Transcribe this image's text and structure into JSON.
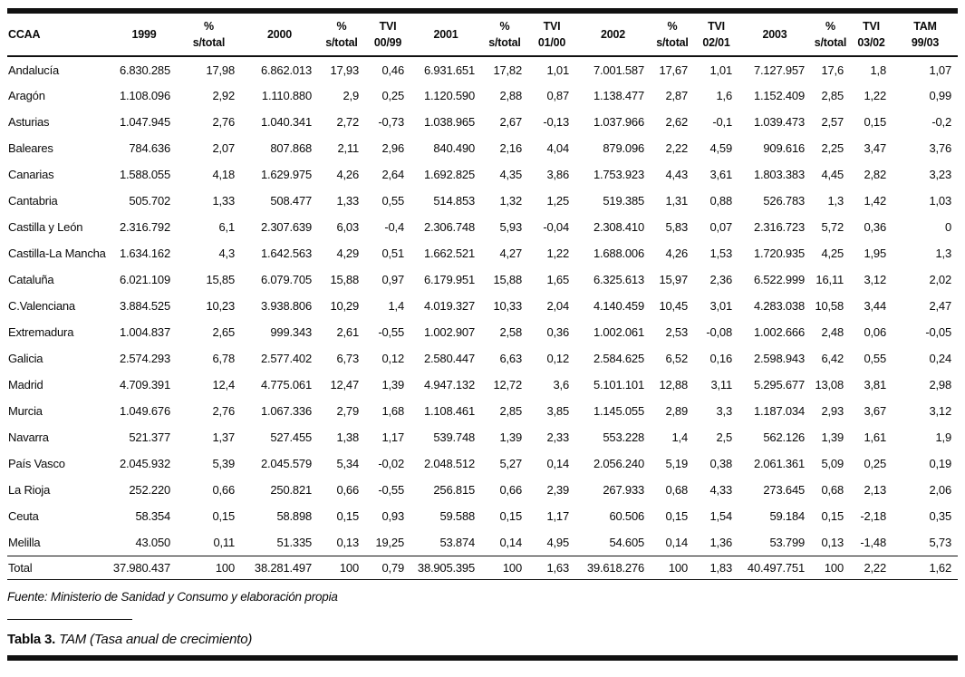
{
  "colors": {
    "ink": "#111111",
    "background": "#ffffff"
  },
  "table": {
    "columns": [
      {
        "line1": "CCAA",
        "line2": ""
      },
      {
        "line1": "1999",
        "line2": ""
      },
      {
        "line1": "%",
        "line2": "s/total"
      },
      {
        "line1": "2000",
        "line2": ""
      },
      {
        "line1": "%",
        "line2": "s/total"
      },
      {
        "line1": "TVI",
        "line2": "00/99"
      },
      {
        "line1": "2001",
        "line2": ""
      },
      {
        "line1": "%",
        "line2": "s/total"
      },
      {
        "line1": "TVI",
        "line2": "01/00"
      },
      {
        "line1": "2002",
        "line2": ""
      },
      {
        "line1": "%",
        "line2": "s/total"
      },
      {
        "line1": "TVI",
        "line2": "02/01"
      },
      {
        "line1": "2003",
        "line2": ""
      },
      {
        "line1": "%",
        "line2": "s/total"
      },
      {
        "line1": "TVI",
        "line2": "03/02"
      },
      {
        "line1": "TAM",
        "line2": "99/03"
      }
    ],
    "rows": [
      [
        "Andalucía",
        "6.830.285",
        "17,98",
        "6.862.013",
        "17,93",
        "0,46",
        "6.931.651",
        "17,82",
        "1,01",
        "7.001.587",
        "17,67",
        "1,01",
        "7.127.957",
        "17,6",
        "1,8",
        "1,07"
      ],
      [
        "Aragón",
        "1.108.096",
        "2,92",
        "1.110.880",
        "2,9",
        "0,25",
        "1.120.590",
        "2,88",
        "0,87",
        "1.138.477",
        "2,87",
        "1,6",
        "1.152.409",
        "2,85",
        "1,22",
        "0,99"
      ],
      [
        "Asturias",
        "1.047.945",
        "2,76",
        "1.040.341",
        "2,72",
        "-0,73",
        "1.038.965",
        "2,67",
        "-0,13",
        "1.037.966",
        "2,62",
        "-0,1",
        "1.039.473",
        "2,57",
        "0,15",
        "-0,2"
      ],
      [
        "Baleares",
        "784.636",
        "2,07",
        "807.868",
        "2,11",
        "2,96",
        "840.490",
        "2,16",
        "4,04",
        "879.096",
        "2,22",
        "4,59",
        "909.616",
        "2,25",
        "3,47",
        "3,76"
      ],
      [
        "Canarias",
        "1.588.055",
        "4,18",
        "1.629.975",
        "4,26",
        "2,64",
        "1.692.825",
        "4,35",
        "3,86",
        "1.753.923",
        "4,43",
        "3,61",
        "1.803.383",
        "4,45",
        "2,82",
        "3,23"
      ],
      [
        "Cantabria",
        "505.702",
        "1,33",
        "508.477",
        "1,33",
        "0,55",
        "514.853",
        "1,32",
        "1,25",
        "519.385",
        "1,31",
        "0,88",
        "526.783",
        "1,3",
        "1,42",
        "1,03"
      ],
      [
        "Castilla y León",
        "2.316.792",
        "6,1",
        "2.307.639",
        "6,03",
        "-0,4",
        "2.306.748",
        "5,93",
        "-0,04",
        "2.308.410",
        "5,83",
        "0,07",
        "2.316.723",
        "5,72",
        "0,36",
        "0"
      ],
      [
        "Castilla-La Mancha",
        "1.634.162",
        "4,3",
        "1.642.563",
        "4,29",
        "0,51",
        "1.662.521",
        "4,27",
        "1,22",
        "1.688.006",
        "4,26",
        "1,53",
        "1.720.935",
        "4,25",
        "1,95",
        "1,3"
      ],
      [
        "Cataluña",
        "6.021.109",
        "15,85",
        "6.079.705",
        "15,88",
        "0,97",
        "6.179.951",
        "15,88",
        "1,65",
        "6.325.613",
        "15,97",
        "2,36",
        "6.522.999",
        "16,11",
        "3,12",
        "2,02"
      ],
      [
        "C.Valenciana",
        "3.884.525",
        "10,23",
        "3.938.806",
        "10,29",
        "1,4",
        "4.019.327",
        "10,33",
        "2,04",
        "4.140.459",
        "10,45",
        "3,01",
        "4.283.038",
        "10,58",
        "3,44",
        "2,47"
      ],
      [
        "Extremadura",
        "1.004.837",
        "2,65",
        "999.343",
        "2,61",
        "-0,55",
        "1.002.907",
        "2,58",
        "0,36",
        "1.002.061",
        "2,53",
        "-0,08",
        "1.002.666",
        "2,48",
        "0,06",
        "-0,05"
      ],
      [
        "Galicia",
        "2.574.293",
        "6,78",
        "2.577.402",
        "6,73",
        "0,12",
        "2.580.447",
        "6,63",
        "0,12",
        "2.584.625",
        "6,52",
        "0,16",
        "2.598.943",
        "6,42",
        "0,55",
        "0,24"
      ],
      [
        "Madrid",
        "4.709.391",
        "12,4",
        "4.775.061",
        "12,47",
        "1,39",
        "4.947.132",
        "12,72",
        "3,6",
        "5.101.101",
        "12,88",
        "3,11",
        "5.295.677",
        "13,08",
        "3,81",
        "2,98"
      ],
      [
        "Murcia",
        "1.049.676",
        "2,76",
        "1.067.336",
        "2,79",
        "1,68",
        "1.108.461",
        "2,85",
        "3,85",
        "1.145.055",
        "2,89",
        "3,3",
        "1.187.034",
        "2,93",
        "3,67",
        "3,12"
      ],
      [
        "Navarra",
        "521.377",
        "1,37",
        "527.455",
        "1,38",
        "1,17",
        "539.748",
        "1,39",
        "2,33",
        "553.228",
        "1,4",
        "2,5",
        "562.126",
        "1,39",
        "1,61",
        "1,9"
      ],
      [
        "País Vasco",
        "2.045.932",
        "5,39",
        "2.045.579",
        "5,34",
        "-0,02",
        "2.048.512",
        "5,27",
        "0,14",
        "2.056.240",
        "5,19",
        "0,38",
        "2.061.361",
        "5,09",
        "0,25",
        "0,19"
      ],
      [
        "La Rioja",
        "252.220",
        "0,66",
        "250.821",
        "0,66",
        "-0,55",
        "256.815",
        "0,66",
        "2,39",
        "267.933",
        "0,68",
        "4,33",
        "273.645",
        "0,68",
        "2,13",
        "2,06"
      ],
      [
        "Ceuta",
        "58.354",
        "0,15",
        "58.898",
        "0,15",
        "0,93",
        "59.588",
        "0,15",
        "1,17",
        "60.506",
        "0,15",
        "1,54",
        "59.184",
        "0,15",
        "-2,18",
        "0,35"
      ],
      [
        "Melilla",
        "43.050",
        "0,11",
        "51.335",
        "0,13",
        "19,25",
        "53.874",
        "0,14",
        "4,95",
        "54.605",
        "0,14",
        "1,36",
        "53.799",
        "0,13",
        "-1,48",
        "5,73"
      ]
    ],
    "total_row": [
      "Total",
      "37.980.437",
      "100",
      "38.281.497",
      "100",
      "0,79",
      "38.905.395",
      "100",
      "1,63",
      "39.618.276",
      "100",
      "1,83",
      "40.497.751",
      "100",
      "2,22",
      "1,62"
    ]
  },
  "source_note": "Fuente: Ministerio de Sanidad y Consumo y elaboración propia",
  "caption": {
    "label": "Tabla 3.",
    "text": "TAM (Tasa anual de crecimiento)"
  }
}
